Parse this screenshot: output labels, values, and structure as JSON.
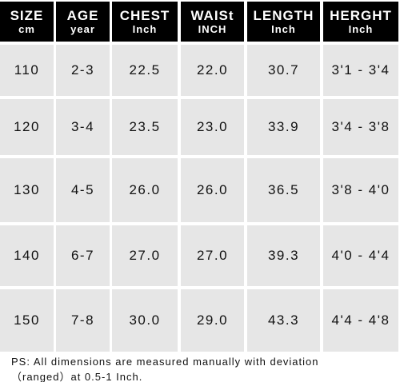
{
  "table": {
    "header": [
      [
        "SIZE",
        "cm"
      ],
      [
        "AGE",
        "year"
      ],
      [
        "CHEST",
        "Inch"
      ],
      [
        "WAISt",
        "INCH"
      ],
      [
        "LENGTH",
        "Inch"
      ],
      [
        "HERGHT",
        "Inch"
      ]
    ],
    "rows": [
      [
        "110",
        "2-3",
        "22.5",
        "22.0",
        "30.7",
        "3'1 - 3'4"
      ],
      [
        "120",
        "3-4",
        "23.5",
        "23.0",
        "33.9",
        "3'4 - 3'8"
      ],
      [
        "130",
        "4-5",
        "26.0",
        "26.0",
        "36.5",
        "3'8 - 4'0"
      ],
      [
        "140",
        "6-7",
        "27.0",
        "27.0",
        "39.3",
        "4'0 - 4'4"
      ],
      [
        "150",
        "7-8",
        "30.0",
        "29.0",
        "43.3",
        "4'4 - 4'8"
      ]
    ]
  },
  "note": [
    "PS:  All dimensions are measured manually with deviation",
    "（ranged）at 0.5-1 Inch."
  ]
}
